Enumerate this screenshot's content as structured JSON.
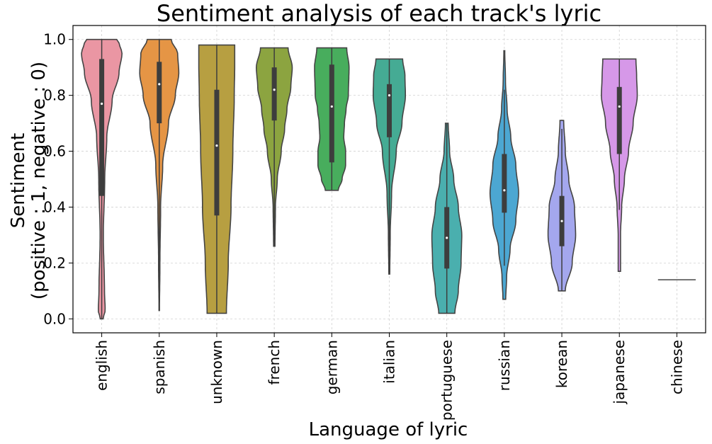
{
  "chart_data": {
    "type": "violin",
    "title": "Sentiment analysis of each track's lyric",
    "xlabel": "Language of lyric",
    "ylabel_line1": "Sentiment",
    "ylabel_line2": "(positive : 1, negative : 0)",
    "ylim": [
      -0.05,
      1.05
    ],
    "yticks": [
      0.0,
      0.2,
      0.4,
      0.6,
      0.8,
      1.0
    ],
    "ytick_labels": [
      "0.0",
      "0.2",
      "0.4",
      "0.6",
      "0.8",
      "1.0"
    ],
    "grid": true,
    "categories": [
      "english",
      "spanish",
      "unknown",
      "french",
      "german",
      "italian",
      "portuguese",
      "russian",
      "korean",
      "japanese",
      "chinese"
    ],
    "colors": [
      "#ea96a3",
      "#e59545",
      "#b79f41",
      "#8ca440",
      "#48ad5d",
      "#45ab94",
      "#4aafae",
      "#4ca7d2",
      "#a4a7ee",
      "#d698e8",
      "#888888"
    ],
    "violins": [
      {
        "min": 0.0,
        "max": 1.0,
        "q1": 0.44,
        "median": 0.77,
        "q3": 0.93,
        "wlo": 0.0,
        "whi": 1.0,
        "profile": [
          [
            0.0,
            0.06
          ],
          [
            0.03,
            0.15
          ],
          [
            0.1,
            0.12
          ],
          [
            0.3,
            0.07
          ],
          [
            0.5,
            0.13
          ],
          [
            0.65,
            0.22
          ],
          [
            0.78,
            0.45
          ],
          [
            0.88,
            0.75
          ],
          [
            0.95,
            0.88
          ],
          [
            0.99,
            0.75
          ],
          [
            1.0,
            0.65
          ]
        ]
      },
      {
        "min": 0.03,
        "max": 1.0,
        "q1": 0.7,
        "median": 0.84,
        "q3": 0.92,
        "wlo": 0.03,
        "whi": 1.0,
        "profile": [
          [
            0.03,
            0.01
          ],
          [
            0.2,
            0.03
          ],
          [
            0.4,
            0.06
          ],
          [
            0.55,
            0.15
          ],
          [
            0.7,
            0.4
          ],
          [
            0.8,
            0.7
          ],
          [
            0.88,
            0.85
          ],
          [
            0.95,
            0.8
          ],
          [
            1.0,
            0.52
          ]
        ]
      },
      {
        "min": 0.02,
        "max": 0.98,
        "q1": 0.37,
        "median": 0.62,
        "q3": 0.82,
        "wlo": 0.02,
        "whi": 0.98,
        "profile": [
          [
            0.02,
            0.42
          ],
          [
            0.2,
            0.5
          ],
          [
            0.4,
            0.62
          ],
          [
            0.6,
            0.7
          ],
          [
            0.8,
            0.76
          ],
          [
            0.9,
            0.78
          ],
          [
            0.98,
            0.78
          ]
        ]
      },
      {
        "min": 0.26,
        "max": 0.97,
        "q1": 0.71,
        "median": 0.82,
        "q3": 0.9,
        "wlo": 0.26,
        "whi": 0.97,
        "profile": [
          [
            0.26,
            0.03
          ],
          [
            0.4,
            0.05
          ],
          [
            0.5,
            0.13
          ],
          [
            0.6,
            0.3
          ],
          [
            0.68,
            0.45
          ],
          [
            0.75,
            0.55
          ],
          [
            0.83,
            0.72
          ],
          [
            0.9,
            0.78
          ],
          [
            0.97,
            0.6
          ]
        ]
      },
      {
        "min": 0.46,
        "max": 0.97,
        "q1": 0.56,
        "median": 0.76,
        "q3": 0.91,
        "wlo": 0.46,
        "whi": 0.97,
        "profile": [
          [
            0.46,
            0.28
          ],
          [
            0.5,
            0.45
          ],
          [
            0.55,
            0.6
          ],
          [
            0.6,
            0.6
          ],
          [
            0.65,
            0.52
          ],
          [
            0.7,
            0.55
          ],
          [
            0.75,
            0.62
          ],
          [
            0.8,
            0.72
          ],
          [
            0.9,
            0.75
          ],
          [
            0.97,
            0.65
          ]
        ]
      },
      {
        "min": 0.16,
        "max": 0.93,
        "q1": 0.65,
        "median": 0.8,
        "q3": 0.84,
        "wlo": 0.16,
        "whi": 0.93,
        "profile": [
          [
            0.16,
            0.02
          ],
          [
            0.3,
            0.04
          ],
          [
            0.45,
            0.1
          ],
          [
            0.6,
            0.3
          ],
          [
            0.7,
            0.55
          ],
          [
            0.8,
            0.7
          ],
          [
            0.87,
            0.68
          ],
          [
            0.93,
            0.58
          ]
        ]
      },
      {
        "min": 0.02,
        "max": 0.7,
        "q1": 0.18,
        "median": 0.29,
        "q3": 0.4,
        "wlo": 0.02,
        "whi": 0.7,
        "profile": [
          [
            0.02,
            0.35
          ],
          [
            0.1,
            0.5
          ],
          [
            0.2,
            0.62
          ],
          [
            0.3,
            0.65
          ],
          [
            0.4,
            0.5
          ],
          [
            0.5,
            0.3
          ],
          [
            0.6,
            0.12
          ],
          [
            0.7,
            0.06
          ]
        ]
      },
      {
        "min": 0.07,
        "max": 0.96,
        "q1": 0.38,
        "median": 0.46,
        "q3": 0.59,
        "wlo": 0.19,
        "whi": 0.82,
        "profile": [
          [
            0.07,
            0.06
          ],
          [
            0.15,
            0.1
          ],
          [
            0.25,
            0.25
          ],
          [
            0.35,
            0.5
          ],
          [
            0.45,
            0.62
          ],
          [
            0.55,
            0.5
          ],
          [
            0.65,
            0.28
          ],
          [
            0.75,
            0.12
          ],
          [
            0.85,
            0.05
          ],
          [
            0.96,
            0.02
          ]
        ]
      },
      {
        "min": 0.1,
        "max": 0.71,
        "q1": 0.26,
        "median": 0.35,
        "q3": 0.44,
        "wlo": 0.1,
        "whi": 0.68,
        "profile": [
          [
            0.1,
            0.15
          ],
          [
            0.2,
            0.45
          ],
          [
            0.3,
            0.6
          ],
          [
            0.4,
            0.55
          ],
          [
            0.5,
            0.3
          ],
          [
            0.6,
            0.15
          ],
          [
            0.71,
            0.08
          ]
        ]
      },
      {
        "min": 0.17,
        "max": 0.93,
        "q1": 0.59,
        "median": 0.76,
        "q3": 0.83,
        "wlo": 0.39,
        "whi": 0.93,
        "profile": [
          [
            0.17,
            0.05
          ],
          [
            0.3,
            0.05
          ],
          [
            0.4,
            0.1
          ],
          [
            0.5,
            0.22
          ],
          [
            0.6,
            0.4
          ],
          [
            0.7,
            0.6
          ],
          [
            0.8,
            0.78
          ],
          [
            0.87,
            0.75
          ],
          [
            0.93,
            0.72
          ]
        ]
      },
      {
        "min": 0.14,
        "max": 0.14,
        "q1": 0.14,
        "median": 0.14,
        "q3": 0.14,
        "wlo": 0.14,
        "whi": 0.14,
        "profile": [
          [
            0.14,
            0.82
          ]
        ]
      }
    ]
  }
}
